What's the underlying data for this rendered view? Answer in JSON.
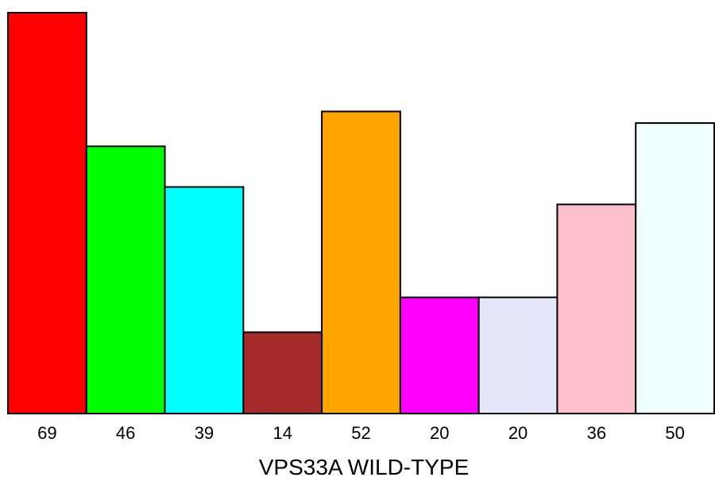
{
  "chart_data": {
    "type": "bar",
    "title": "",
    "xlabel": "VPS33A WILD-TYPE",
    "ylabel": "",
    "categories": [
      "69",
      "46",
      "39",
      "14",
      "52",
      "20",
      "20",
      "36",
      "50"
    ],
    "values": [
      69,
      46,
      39,
      14,
      52,
      20,
      20,
      36,
      50
    ],
    "ylim": [
      0,
      69
    ],
    "grid": false,
    "legend": "none",
    "colors": [
      "#ff0000",
      "#00ff00",
      "#00ffff",
      "#a52a2a",
      "#ffa500",
      "#ff00ff",
      "#e6e6fa",
      "#ffc0cb",
      "#f0ffff"
    ],
    "edge_color": "#000000"
  }
}
